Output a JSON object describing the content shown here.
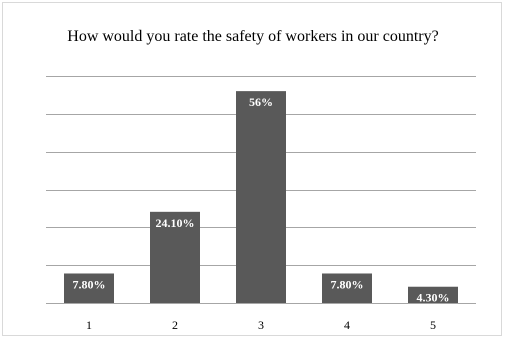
{
  "chart_data": {
    "type": "bar",
    "title": "How would you rate the safety of workers in our country?",
    "xlabel": "",
    "ylabel": "",
    "categories": [
      "1",
      "2",
      "3",
      "4",
      "5"
    ],
    "values": [
      7.8,
      24.1,
      56,
      7.8,
      4.3
    ],
    "data_labels": [
      "7.80%",
      "24.10%",
      "56%",
      "7.80%",
      "4.30%"
    ],
    "ylim": [
      0,
      60
    ],
    "grid": true,
    "legend": "none",
    "colors": {
      "bar": "#595959",
      "grid": "#a6a6a6",
      "label": "#ffffff"
    }
  }
}
